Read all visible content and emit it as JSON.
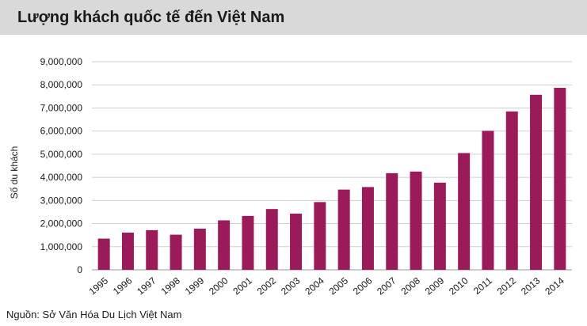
{
  "chart_data": {
    "type": "bar",
    "title": "Lượng khách quốc tế đến Việt Nam",
    "ylabel": "Số du khách",
    "xlabel": "",
    "source": "Nguồn: Sở Văn Hóa Du Lịch Việt Nam",
    "categories": [
      "1995",
      "1996",
      "1997",
      "1998",
      "1999",
      "2000",
      "2001",
      "2002",
      "2003",
      "2004",
      "2005",
      "2006",
      "2007",
      "2008",
      "2009",
      "2010",
      "2011",
      "2012",
      "2013",
      "2014"
    ],
    "values": [
      1350000,
      1610000,
      1716000,
      1520000,
      1780000,
      2140000,
      2330000,
      2630000,
      2430000,
      2930000,
      3470000,
      3580000,
      4180000,
      4250000,
      3770000,
      5050000,
      6010000,
      6850000,
      7570000,
      7870000
    ],
    "yticks": [
      "0",
      "1,000,000",
      "2,000,000",
      "3,000,000",
      "4,000,000",
      "5,000,000",
      "6,000,000",
      "7,000,000",
      "8,000,000",
      "9,000,000"
    ],
    "ylim": [
      0,
      9000000
    ],
    "grid": true,
    "bar_color": "#9b1b5a"
  }
}
